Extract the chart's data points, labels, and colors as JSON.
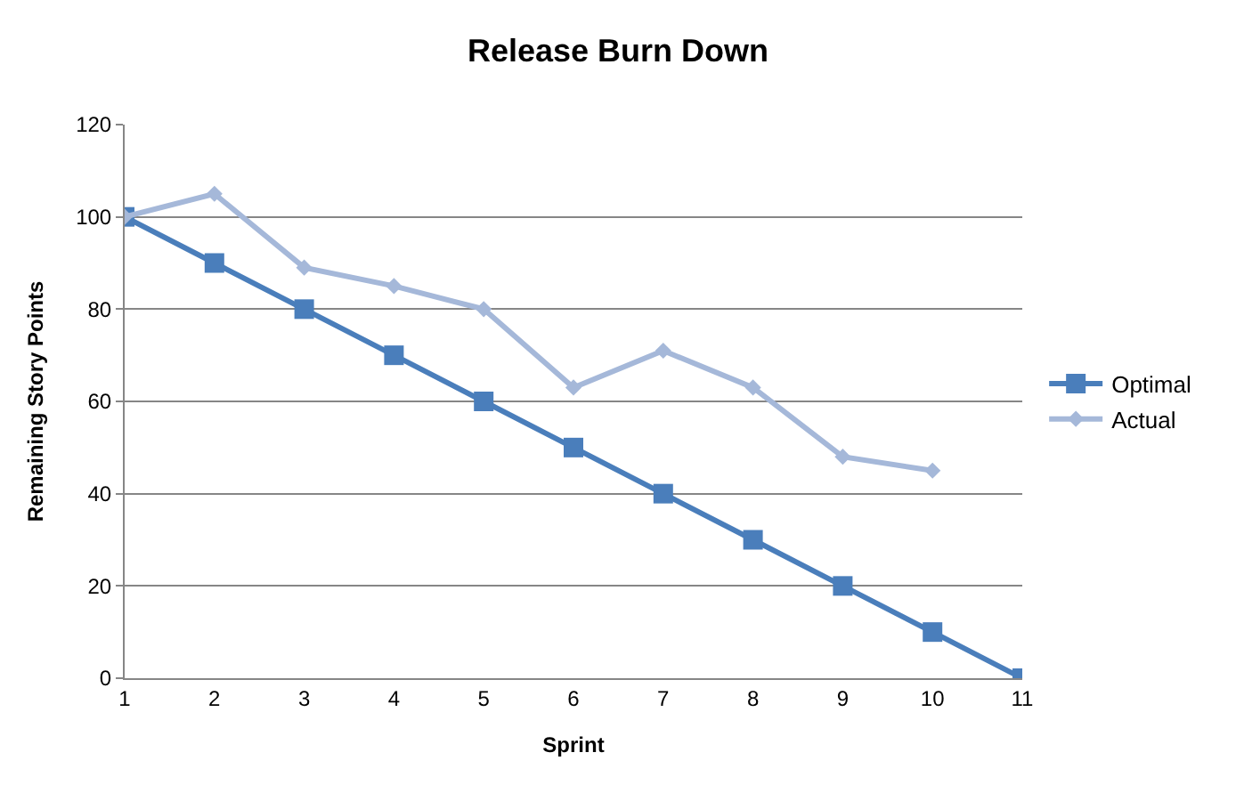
{
  "chart_data": {
    "type": "line",
    "title": "Release Burn Down",
    "xlabel": "Sprint",
    "ylabel": "Remaining Story Points",
    "categories": [
      "1",
      "2",
      "3",
      "4",
      "5",
      "6",
      "7",
      "8",
      "9",
      "10",
      "11"
    ],
    "series": [
      {
        "name": "Optimal",
        "color": "#4a7ebb",
        "marker": "square",
        "values": [
          100,
          90,
          80,
          70,
          60,
          50,
          40,
          30,
          20,
          10,
          0
        ]
      },
      {
        "name": "Actual",
        "color": "#a5b8d9",
        "marker": "diamond",
        "values": [
          100,
          105,
          89,
          85,
          80,
          63,
          71,
          63,
          48,
          45,
          null
        ]
      }
    ],
    "ylim": [
      0,
      120
    ],
    "yticks": [
      0,
      20,
      40,
      60,
      80,
      100,
      120
    ],
    "grid": "y",
    "legend": "right",
    "line_style": "solid"
  }
}
